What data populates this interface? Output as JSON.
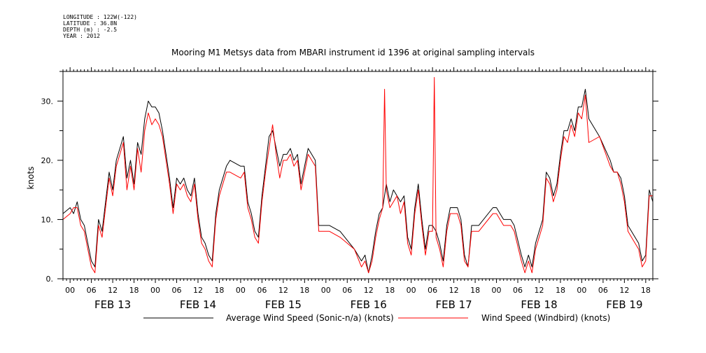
{
  "meta_lines": [
    "LONGITUDE : 122W(-122)",
    "LATITUDE : 36.8N",
    "DEPTH (m) : -2.5",
    "YEAR : 2012"
  ],
  "chart_data": {
    "type": "line",
    "title": "Mooring M1 Metsys data from MBARI instrument id 1396 at original sampling intervals",
    "ylabel": "knots",
    "xlabel": "",
    "ylim": [
      0,
      35
    ],
    "yticks": [
      0,
      10,
      20,
      30
    ],
    "ytick_labels": [
      "0.",
      "10.",
      "20.",
      "30."
    ],
    "xrange_hours": [
      -2,
      164
    ],
    "x_units": "hours from FEB 13 00:00 (2012)",
    "hour_tick_labels": [
      "00",
      "06",
      "12",
      "18",
      "00",
      "06",
      "12",
      "18",
      "00",
      "06",
      "12",
      "18",
      "00",
      "06",
      "12",
      "18",
      "00",
      "06",
      "12",
      "18",
      "00",
      "06",
      "12",
      "18",
      "00",
      "06",
      "12",
      "18"
    ],
    "day_labels": [
      "FEB 13",
      "FEB 14",
      "FEB 15",
      "FEB 16",
      "FEB 17",
      "FEB 18",
      "FEB 19"
    ],
    "grid": false,
    "legend_position": "bottom",
    "colors": {
      "avg": "#000000",
      "windbird": "#ff0000"
    },
    "series": [
      {
        "name": "Average Wind Speed (Sonic-n/a) (knots)",
        "color": "#000000",
        "points": [
          [
            -2,
            11
          ],
          [
            0,
            12
          ],
          [
            1,
            11
          ],
          [
            2,
            13
          ],
          [
            3,
            10
          ],
          [
            4,
            9
          ],
          [
            5,
            6
          ],
          [
            6,
            3
          ],
          [
            7,
            2
          ],
          [
            8,
            10
          ],
          [
            9,
            8
          ],
          [
            10,
            13
          ],
          [
            11,
            18
          ],
          [
            12,
            15
          ],
          [
            13,
            20
          ],
          [
            14,
            22
          ],
          [
            15,
            24
          ],
          [
            16,
            17
          ],
          [
            17,
            20
          ],
          [
            18,
            16
          ],
          [
            19,
            23
          ],
          [
            20,
            21
          ],
          [
            21,
            27
          ],
          [
            22,
            30
          ],
          [
            23,
            29
          ],
          [
            24,
            29
          ],
          [
            25,
            28
          ],
          [
            26,
            25
          ],
          [
            27,
            21
          ],
          [
            28,
            17
          ],
          [
            29,
            12
          ],
          [
            30,
            17
          ],
          [
            31,
            16
          ],
          [
            32,
            17
          ],
          [
            33,
            15
          ],
          [
            34,
            14
          ],
          [
            35,
            17
          ],
          [
            36,
            11
          ],
          [
            37,
            7
          ],
          [
            38,
            6
          ],
          [
            39,
            4
          ],
          [
            40,
            3
          ],
          [
            41,
            11
          ],
          [
            42,
            15
          ],
          [
            43,
            17
          ],
          [
            44,
            19
          ],
          [
            45,
            20
          ],
          [
            48,
            19
          ],
          [
            49,
            19
          ],
          [
            50,
            13
          ],
          [
            51,
            11
          ],
          [
            52,
            8
          ],
          [
            53,
            7
          ],
          [
            54,
            14
          ],
          [
            55,
            19
          ],
          [
            56,
            24
          ],
          [
            57,
            25
          ],
          [
            58,
            22
          ],
          [
            59,
            19
          ],
          [
            60,
            21
          ],
          [
            61,
            21
          ],
          [
            62,
            22
          ],
          [
            63,
            20
          ],
          [
            64,
            21
          ],
          [
            65,
            16
          ],
          [
            66,
            19
          ],
          [
            67,
            22
          ],
          [
            68,
            21
          ],
          [
            69,
            20
          ],
          [
            70,
            9
          ],
          [
            73,
            9
          ],
          [
            76,
            8
          ],
          [
            80,
            5
          ],
          [
            82,
            3
          ],
          [
            83,
            4
          ],
          [
            84,
            1
          ],
          [
            85,
            4
          ],
          [
            86,
            8
          ],
          [
            87,
            11
          ],
          [
            88,
            12
          ],
          [
            89,
            16
          ],
          [
            90,
            13
          ],
          [
            91,
            15
          ],
          [
            92,
            14
          ],
          [
            93,
            13
          ],
          [
            94,
            14
          ],
          [
            95,
            7
          ],
          [
            96,
            5
          ],
          [
            97,
            12
          ],
          [
            98,
            16
          ],
          [
            99,
            10
          ],
          [
            100,
            5
          ],
          [
            101,
            9
          ],
          [
            102,
            9
          ],
          [
            103,
            8
          ],
          [
            104,
            6
          ],
          [
            105,
            3
          ],
          [
            106,
            9
          ],
          [
            107,
            12
          ],
          [
            109,
            12
          ],
          [
            110,
            10
          ],
          [
            111,
            4
          ],
          [
            112,
            2
          ],
          [
            113,
            9
          ],
          [
            115,
            9
          ],
          [
            119,
            12
          ],
          [
            120,
            12
          ],
          [
            121,
            11
          ],
          [
            122,
            10
          ],
          [
            124,
            10
          ],
          [
            125,
            9
          ],
          [
            127,
            4
          ],
          [
            128,
            2
          ],
          [
            129,
            4
          ],
          [
            130,
            2
          ],
          [
            131,
            6
          ],
          [
            132,
            8
          ],
          [
            133,
            10
          ],
          [
            134,
            18
          ],
          [
            135,
            17
          ],
          [
            136,
            14
          ],
          [
            137,
            16
          ],
          [
            138,
            21
          ],
          [
            139,
            25
          ],
          [
            140,
            25
          ],
          [
            141,
            27
          ],
          [
            142,
            25
          ],
          [
            143,
            29
          ],
          [
            144,
            29
          ],
          [
            145,
            32
          ],
          [
            146,
            27
          ],
          [
            149,
            24
          ],
          [
            152,
            20
          ],
          [
            153,
            18
          ],
          [
            154,
            18
          ],
          [
            155,
            17
          ],
          [
            156,
            14
          ],
          [
            157,
            9
          ],
          [
            158,
            8
          ],
          [
            159,
            7
          ],
          [
            160,
            6
          ],
          [
            161,
            3
          ],
          [
            162,
            4
          ],
          [
            163,
            15
          ],
          [
            164,
            13
          ]
        ]
      },
      {
        "name": "Wind Speed (Windbird) (knots)",
        "color": "#ff0000",
        "points": [
          [
            -2,
            10
          ],
          [
            0,
            11
          ],
          [
            1,
            12
          ],
          [
            2,
            12
          ],
          [
            3,
            9
          ],
          [
            4,
            8
          ],
          [
            5,
            5
          ],
          [
            6,
            2
          ],
          [
            7,
            1
          ],
          [
            8,
            9
          ],
          [
            9,
            7
          ],
          [
            10,
            12
          ],
          [
            11,
            17
          ],
          [
            12,
            14
          ],
          [
            13,
            19
          ],
          [
            14,
            21
          ],
          [
            15,
            23
          ],
          [
            16,
            15
          ],
          [
            17,
            19
          ],
          [
            18,
            15
          ],
          [
            19,
            22
          ],
          [
            20,
            18
          ],
          [
            21,
            25
          ],
          [
            22,
            28
          ],
          [
            23,
            26
          ],
          [
            24,
            27
          ],
          [
            25,
            26
          ],
          [
            26,
            24
          ],
          [
            27,
            20
          ],
          [
            28,
            16
          ],
          [
            29,
            11
          ],
          [
            30,
            16
          ],
          [
            31,
            15
          ],
          [
            32,
            16
          ],
          [
            33,
            14
          ],
          [
            34,
            13
          ],
          [
            35,
            16
          ],
          [
            36,
            10
          ],
          [
            37,
            6
          ],
          [
            38,
            5
          ],
          [
            39,
            3
          ],
          [
            40,
            2
          ],
          [
            41,
            10
          ],
          [
            42,
            14
          ],
          [
            43,
            16
          ],
          [
            44,
            18
          ],
          [
            45,
            18
          ],
          [
            48,
            17
          ],
          [
            49,
            18
          ],
          [
            50,
            12
          ],
          [
            51,
            10
          ],
          [
            52,
            7
          ],
          [
            53,
            6
          ],
          [
            54,
            13
          ],
          [
            55,
            18
          ],
          [
            56,
            22
          ],
          [
            57,
            26
          ],
          [
            58,
            21
          ],
          [
            59,
            17
          ],
          [
            60,
            20
          ],
          [
            61,
            20
          ],
          [
            62,
            21
          ],
          [
            63,
            19
          ],
          [
            64,
            20
          ],
          [
            65,
            15
          ],
          [
            66,
            18
          ],
          [
            67,
            21
          ],
          [
            68,
            20
          ],
          [
            69,
            19
          ],
          [
            70,
            8
          ],
          [
            73,
            8
          ],
          [
            76,
            7
          ],
          [
            80,
            5
          ],
          [
            82,
            2
          ],
          [
            83,
            3
          ],
          [
            84,
            1
          ],
          [
            85,
            3
          ],
          [
            86,
            7
          ],
          [
            87,
            10
          ],
          [
            88,
            12
          ],
          [
            88.5,
            32
          ],
          [
            89,
            15
          ],
          [
            90,
            12
          ],
          [
            91,
            13
          ],
          [
            92,
            14
          ],
          [
            93,
            11
          ],
          [
            94,
            13
          ],
          [
            95,
            6
          ],
          [
            96,
            4
          ],
          [
            97,
            11
          ],
          [
            98,
            15
          ],
          [
            99,
            9
          ],
          [
            100,
            4
          ],
          [
            101,
            8
          ],
          [
            102,
            8
          ],
          [
            102.5,
            34
          ],
          [
            103,
            7
          ],
          [
            104,
            5
          ],
          [
            105,
            2
          ],
          [
            106,
            8
          ],
          [
            107,
            11
          ],
          [
            109,
            11
          ],
          [
            110,
            9
          ],
          [
            111,
            3
          ],
          [
            112,
            2
          ],
          [
            113,
            8
          ],
          [
            115,
            8
          ],
          [
            119,
            11
          ],
          [
            120,
            11
          ],
          [
            121,
            10
          ],
          [
            122,
            9
          ],
          [
            124,
            9
          ],
          [
            125,
            8
          ],
          [
            127,
            3
          ],
          [
            128,
            1
          ],
          [
            129,
            3
          ],
          [
            130,
            1
          ],
          [
            131,
            5
          ],
          [
            132,
            7
          ],
          [
            133,
            9
          ],
          [
            134,
            17
          ],
          [
            135,
            16
          ],
          [
            136,
            13
          ],
          [
            137,
            15
          ],
          [
            138,
            20
          ],
          [
            139,
            24
          ],
          [
            140,
            23
          ],
          [
            141,
            26
          ],
          [
            142,
            24
          ],
          [
            143,
            28
          ],
          [
            144,
            27
          ],
          [
            145,
            31
          ],
          [
            146,
            23
          ],
          [
            149,
            24
          ],
          [
            152,
            19
          ],
          [
            153,
            18
          ],
          [
            154,
            18
          ],
          [
            155,
            16
          ],
          [
            156,
            13
          ],
          [
            157,
            8
          ],
          [
            158,
            7
          ],
          [
            159,
            6
          ],
          [
            160,
            5
          ],
          [
            161,
            2
          ],
          [
            162,
            3
          ],
          [
            163,
            14
          ],
          [
            164,
            14
          ]
        ]
      }
    ]
  }
}
